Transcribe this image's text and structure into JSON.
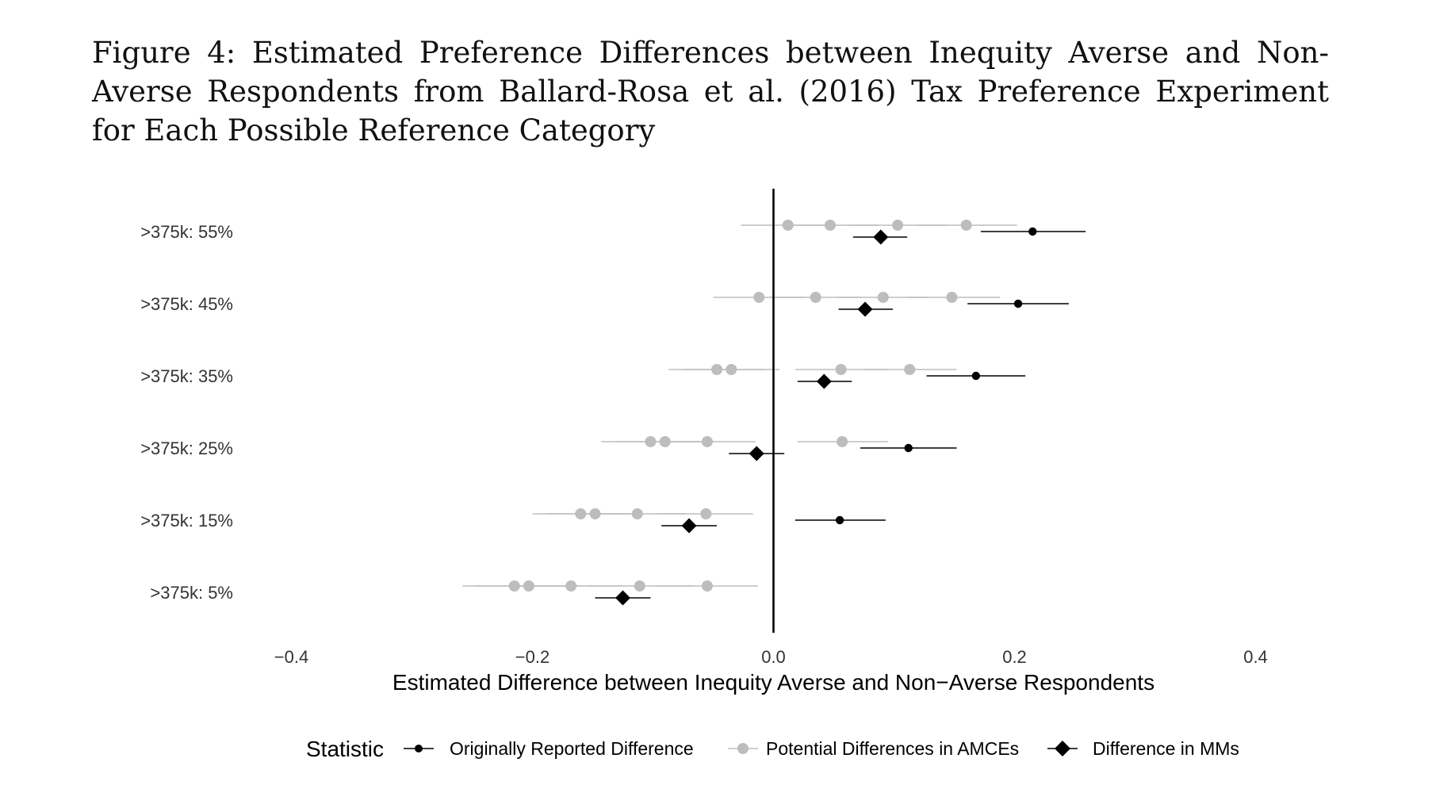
{
  "caption": "Figure 4: Estimated Preference Differences between Inequity Averse and Non-Averse Respondents from Ballard-Rosa et al. (2016) Tax Preference Experiment for Each Possible Reference Category",
  "colors": {
    "original": "#000000",
    "amce": "#bdbdbd",
    "mm": "#000000",
    "zero_line": "#000000"
  },
  "chart_data": {
    "type": "scatter",
    "subtype": "dot-and-whisker",
    "title": "",
    "xlabel": "Estimated Difference between Inequity Averse and Non−Averse Respondents",
    "ylabel": "",
    "xlim": [
      -0.4,
      0.4
    ],
    "xticks": [
      -0.4,
      -0.2,
      0.0,
      0.2,
      0.4
    ],
    "xtick_labels": [
      "−0.4",
      "−0.2",
      "0.0",
      "0.2",
      "0.4"
    ],
    "reference_line_x": 0,
    "grid": false,
    "legend": {
      "title": "Statistic",
      "position": "bottom",
      "entries": [
        "Originally Reported Difference",
        "Potential Differences in AMCEs",
        "Difference in MMs"
      ]
    },
    "categories": [
      ">375k: 55%",
      ">375k: 45%",
      ">375k: 35%",
      ">375k: 25%",
      ">375k: 15%",
      ">375k: 5%"
    ],
    "series": [
      {
        "name": "Potential Differences in AMCEs",
        "estimates": [
          [
            0.012,
            0.047,
            0.103,
            0.16
          ],
          [
            -0.012,
            0.035,
            0.091,
            0.148
          ],
          [
            -0.047,
            -0.035,
            0.056,
            0.113
          ],
          [
            -0.102,
            -0.09,
            -0.055,
            0.057
          ],
          [
            -0.16,
            -0.148,
            -0.113,
            -0.056
          ],
          [
            -0.215,
            -0.203,
            -0.168,
            -0.111,
            -0.055
          ]
        ],
        "ci": [
          [
            [
              -0.027,
              0.052
            ],
            [
              0.008,
              0.087
            ],
            [
              0.063,
              0.143
            ],
            [
              0.12,
              0.202
            ]
          ],
          [
            [
              -0.05,
              0.026
            ],
            [
              -0.003,
              0.073
            ],
            [
              0.053,
              0.129
            ],
            [
              0.11,
              0.188
            ]
          ],
          [
            [
              -0.087,
              -0.007
            ],
            [
              -0.075,
              0.005
            ],
            [
              0.018,
              0.095
            ],
            [
              0.075,
              0.152
            ]
          ],
          [
            [
              -0.143,
              -0.061
            ],
            [
              -0.131,
              -0.049
            ],
            [
              -0.095,
              -0.015
            ],
            [
              0.02,
              0.095
            ]
          ],
          [
            [
              -0.2,
              -0.12
            ],
            [
              -0.188,
              -0.108
            ],
            [
              -0.153,
              -0.073
            ],
            [
              -0.096,
              -0.017
            ]
          ],
          [
            [
              -0.258,
              -0.172
            ],
            [
              -0.246,
              -0.16
            ],
            [
              -0.211,
              -0.125
            ],
            [
              -0.154,
              -0.068
            ],
            [
              -0.097,
              -0.013
            ]
          ]
        ]
      },
      {
        "name": "Originally Reported Difference",
        "estimates": [
          0.215,
          0.203,
          0.168,
          0.112,
          0.055,
          null
        ],
        "ci": [
          [
            0.172,
            0.259
          ],
          [
            0.161,
            0.245
          ],
          [
            0.127,
            0.209
          ],
          [
            0.072,
            0.152
          ],
          [
            0.018,
            0.093
          ],
          null
        ]
      },
      {
        "name": "Difference in MMs",
        "estimates": [
          0.089,
          0.076,
          0.042,
          -0.014,
          -0.07,
          -0.125
        ],
        "ci": [
          [
            0.066,
            0.111
          ],
          [
            0.054,
            0.099
          ],
          [
            0.02,
            0.065
          ],
          [
            -0.037,
            0.009
          ],
          [
            -0.093,
            -0.047
          ],
          [
            -0.148,
            -0.102
          ]
        ]
      }
    ]
  }
}
